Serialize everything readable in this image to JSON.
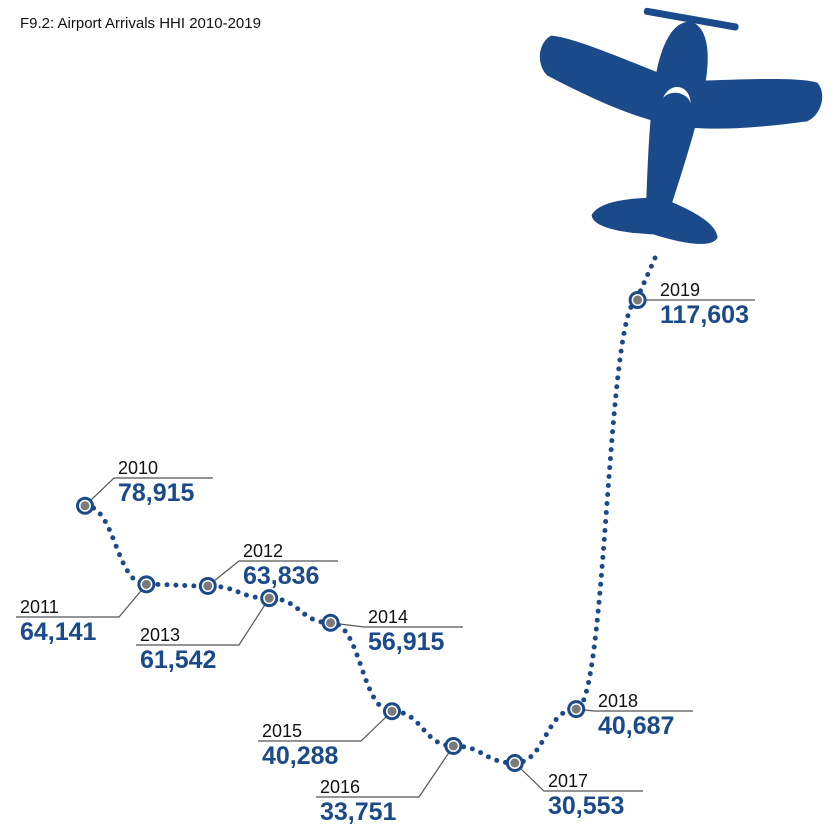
{
  "chart_data": {
    "type": "line",
    "title": "F9.2: Airport Arrivals HHI 2010-2019",
    "categories": [
      "2010",
      "2011",
      "2012",
      "2013",
      "2014",
      "2015",
      "2016",
      "2017",
      "2018",
      "2019"
    ],
    "values": [
      78915,
      64141,
      63836,
      61542,
      56915,
      40288,
      33751,
      30553,
      40687,
      117603
    ],
    "value_labels": [
      "78,915",
      "64,141",
      "63,836",
      "61,542",
      "56,915",
      "40,288",
      "33,751",
      "30,553",
      "40,687",
      "117,603"
    ],
    "color": "#1a4a8a"
  }
}
